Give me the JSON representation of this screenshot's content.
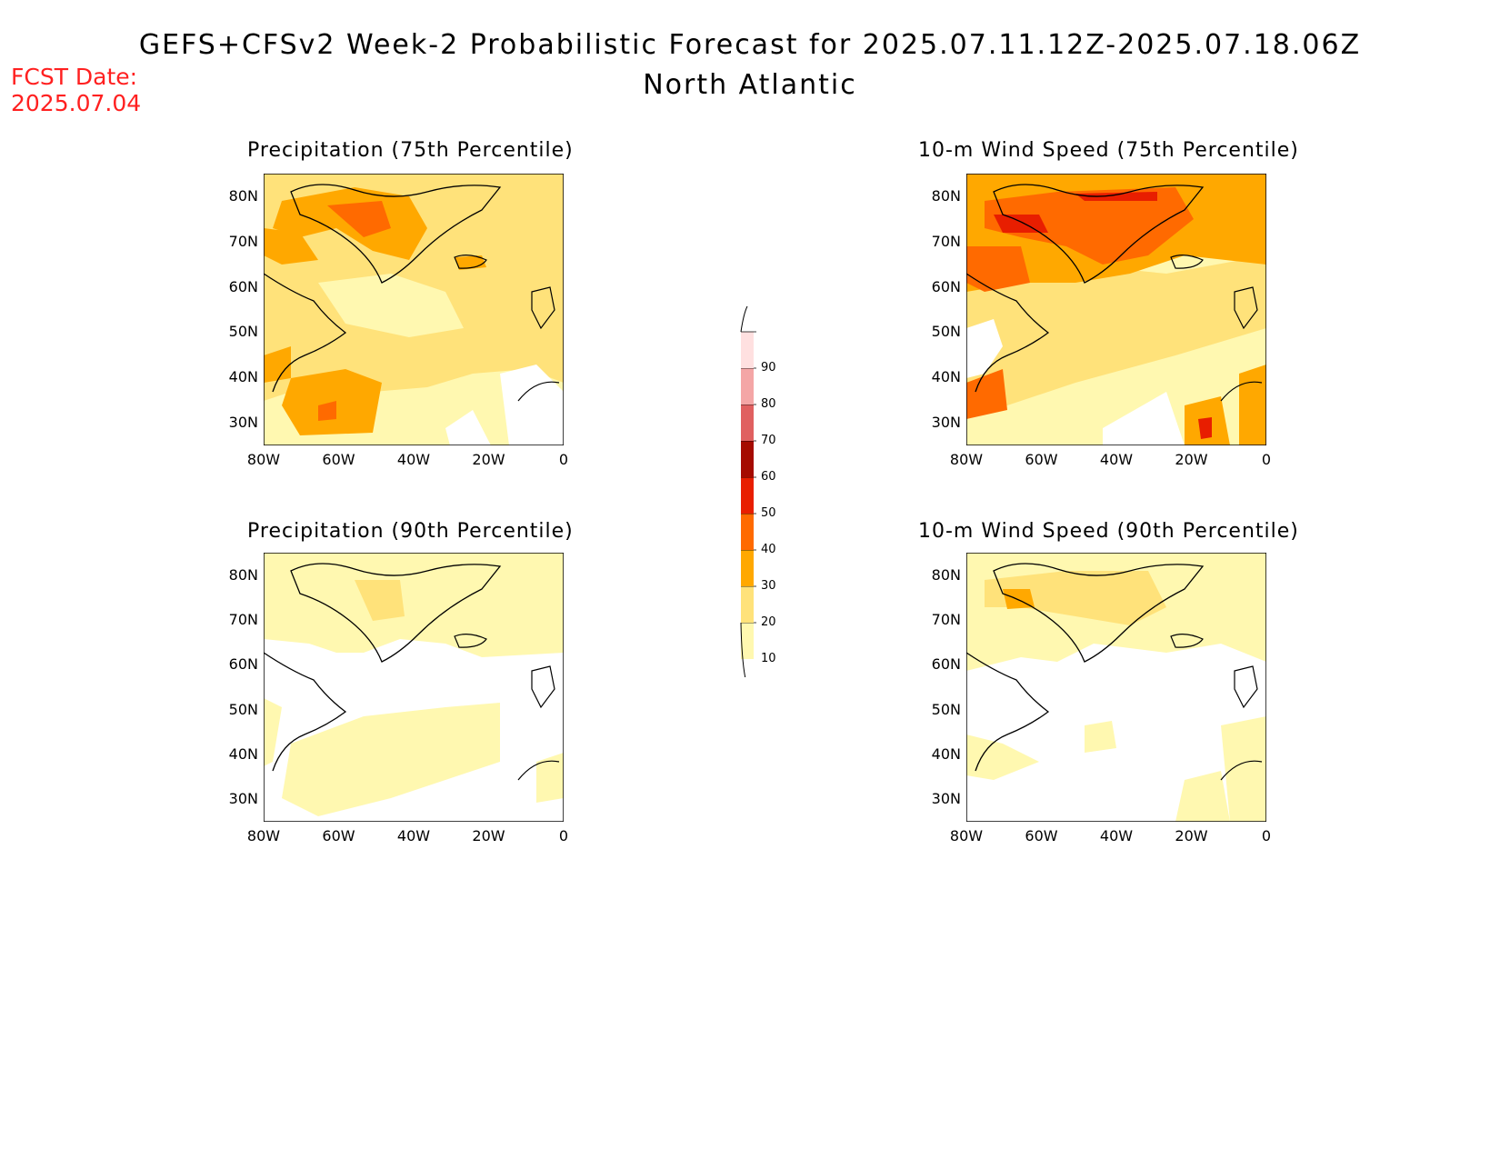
{
  "title": {
    "line1": "GEFS+CFSv2 Week-2 Probabilistic Forecast for 2025.07.11.12Z-2025.07.18.06Z",
    "line2": "North Atlantic"
  },
  "fcst_date": {
    "label": "FCST Date:",
    "value": "2025.07.04"
  },
  "panels": [
    {
      "title": "Precipitation (75th Percentile)"
    },
    {
      "title": "10-m Wind Speed (75th Percentile)"
    },
    {
      "title": "Precipitation (90th Percentile)"
    },
    {
      "title": "10-m Wind Speed (90th Percentile)"
    }
  ],
  "axes": {
    "lat_labels": [
      "80N",
      "70N",
      "60N",
      "50N",
      "40N",
      "30N"
    ],
    "lon_labels": [
      "80W",
      "60W",
      "40W",
      "20W",
      "0"
    ]
  },
  "colorbar": {
    "levels": [
      "10",
      "20",
      "30",
      "40",
      "50",
      "60",
      "70",
      "80",
      "90"
    ],
    "colors": [
      "#fff8b0",
      "#ffe27a",
      "#ffa800",
      "#ff6a00",
      "#e81e00",
      "#a50b00",
      "#e06060",
      "#f4a6a6",
      "#ffe0e0"
    ]
  }
}
